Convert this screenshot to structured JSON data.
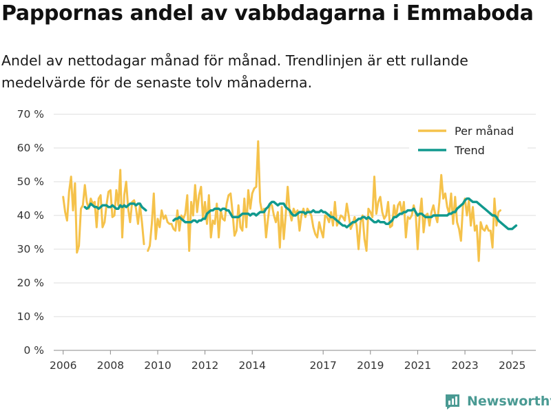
{
  "title": "Pappornas andel av vabbdagarna i Emmaboda",
  "subtitle": "Andel av nettodagar månad för månad. Trendlinjen är ett rullande medelvärde för de senaste tolv månaderna.",
  "brand": "Newsworthy",
  "colors": {
    "monthly": "#f5c24b",
    "trend": "#11998e",
    "grid": "#dddddd",
    "brand": "#4a9a93"
  },
  "chart_data": {
    "type": "line",
    "title": "Pappornas andel av vabbdagarna i Emmaboda",
    "xlabel": "",
    "ylabel": "",
    "x_range": [
      2005.6,
      2026.0
    ],
    "ylim": [
      0,
      70
    ],
    "y_ticks": [
      0,
      10,
      20,
      30,
      40,
      50,
      60,
      70
    ],
    "y_tick_labels": [
      "0 %",
      "10 %",
      "20 %",
      "30 %",
      "40 %",
      "50 %",
      "60 %",
      "70 %"
    ],
    "x_ticks": [
      2006,
      2008,
      2010,
      2012,
      2014,
      2017,
      2019,
      2021,
      2023,
      2025
    ],
    "x_tick_labels": [
      "2006",
      "2008",
      "2010",
      "2012",
      "2014",
      "2017",
      "2019",
      "2021",
      "2023",
      "2025"
    ],
    "legend_position": "top-right",
    "series": [
      {
        "name": "Per månad",
        "segments": [
          {
            "start": 2006.0,
            "values": [
              45.5,
              41,
              38.5,
              47,
              51.5,
              41.5,
              49.5,
              29,
              31,
              42,
              43,
              49,
              44,
              42,
              45,
              43.5,
              44,
              36.5,
              45,
              46,
              36.5,
              38,
              43,
              47,
              47.5,
              39.5,
              40,
              47.5,
              43,
              53.5,
              33.5,
              46,
              50,
              42,
              38,
              44,
              44.5,
              42,
              37.5,
              43,
              38,
              31.5
            ]
          },
          {
            "start": 2009.5833,
            "values": [
              29.5,
              31,
              37.5,
              46.5,
              33,
              39,
              36.5,
              41.5,
              39,
              40,
              38,
              37.5,
              37.5,
              36,
              35.5,
              41.5,
              35.5,
              40,
              39,
              40.5,
              46,
              29.5,
              44,
              40,
              49,
              41,
              46,
              48.5,
              39,
              44,
              37.5,
              46,
              33.5,
              38.5,
              37.5,
              43.5,
              33.5,
              41.5,
              39,
              38.5,
              43.5,
              46,
              46.5,
              41,
              34,
              35.5,
              43,
              36.5,
              35.5,
              45,
              36.5,
              47.5,
              42,
              46.5,
              48,
              48.5,
              62,
              44,
              41,
              42,
              33.5,
              39,
              43.5,
              43,
              40,
              38,
              41,
              30.5,
              42.5,
              33,
              40,
              48.5,
              41,
              38.5,
              42,
              40.5,
              41.5,
              35.5,
              40,
              42,
              39.5,
              42,
              41,
              40,
              36.5,
              34.5,
              33.5,
              38,
              35.5,
              33.5,
              40,
              39.5,
              38,
              41,
              37,
              44,
              37,
              38.5,
              40,
              39.5,
              38.5,
              43.5,
              40,
              36,
              37.5,
              39.5,
              37,
              30,
              38,
              40,
              33,
              29.5,
              42,
              41,
              39.5,
              51.5,
              40.5,
              44,
              45.5,
              41,
              39,
              40,
              44,
              36.5,
              37,
              43,
              39.5,
              43,
              44,
              40.5,
              44,
              33.5,
              39.5,
              39,
              40,
              43,
              40.5,
              30,
              40,
              45,
              35,
              40,
              40.5,
              37,
              41,
              43,
              40,
              38,
              44,
              52,
              45,
              46.5,
              42.5,
              40.5,
              46.5,
              37.5,
              45.5,
              38,
              36,
              32.5,
              43,
              45,
              40,
              44.5,
              37,
              42.5,
              35.5,
              37,
              26.5,
              38,
              36,
              35.5,
              37,
              35.5,
              35.5,
              30.5,
              45,
              37,
              41,
              41.5
            ]
          }
        ]
      },
      {
        "name": "Trend",
        "segments": [
          {
            "start": 2006.9167,
            "values": [
              42.5,
              42,
              42.5,
              43.5,
              43,
              42.5,
              42.5,
              42,
              42.5,
              43,
              43,
              43,
              42.5,
              42.5,
              43,
              42.5,
              42,
              42,
              43,
              42.5,
              43,
              42.5,
              43,
              43.5,
              43.5,
              43.5,
              43,
              43.5,
              43.5,
              42.5,
              42,
              41.5
            ]
          },
          {
            "start": 2010.6667,
            "values": [
              38.5,
              39,
              39,
              39.5,
              39,
              38.5,
              38,
              38,
              38,
              38,
              38.5,
              38.5,
              38,
              38.5,
              38.5,
              39,
              39,
              40.5,
              41,
              41.5,
              41.5,
              42,
              42,
              42,
              41.5,
              42,
              42,
              41.5,
              41.5,
              40.5,
              39.5,
              39.5,
              39.5,
              39.5,
              40,
              40.5,
              40.5,
              40.5,
              40.5,
              40,
              40.5,
              40.5,
              40,
              40.5,
              41,
              41,
              41,
              42,
              42.5,
              43.5,
              44,
              44,
              43.5,
              43,
              43.5,
              43.5,
              43.5,
              42.5,
              42,
              41.5,
              40.5,
              40,
              40,
              40.5,
              41,
              41,
              41,
              40.5,
              41,
              41,
              41,
              41.5,
              41,
              41,
              41,
              41.5,
              41,
              41,
              40.5,
              40,
              39.5,
              39.5,
              39,
              38.5,
              38,
              37.5,
              37,
              37,
              36.5,
              37,
              37.5,
              38,
              38,
              38.5,
              39,
              39,
              39.5,
              39.5,
              39,
              39.5,
              39,
              38.5,
              38,
              38,
              38.5,
              38,
              38,
              38,
              37.5,
              37.5,
              38,
              38.5,
              39.5,
              39.5,
              40,
              40.5,
              40.5,
              41,
              41,
              41.5,
              41.5,
              41.5,
              42,
              41,
              40,
              40.5,
              40.5,
              40,
              39.5,
              39.5,
              39.5,
              39.5,
              40,
              40,
              40,
              40,
              40,
              40,
              40,
              40,
              40.5,
              40.5,
              41,
              41,
              42,
              42.5,
              43,
              43.5,
              44.5,
              45,
              45,
              44.5,
              44,
              44,
              44,
              43.5,
              43,
              42.5,
              42,
              41.5,
              41,
              40.5,
              40,
              40,
              39.5,
              38.5,
              38,
              37.5,
              37,
              36.5,
              36,
              36,
              36,
              36.5,
              37
            ]
          }
        ]
      }
    ]
  }
}
